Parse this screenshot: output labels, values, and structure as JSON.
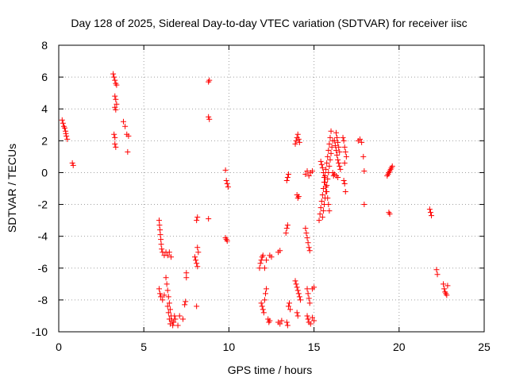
{
  "chart_data": {
    "type": "scatter",
    "title": "Day 128 of 2025, Sidereal Day-to-day VTEC variation (SDTVAR) for receiver iisc",
    "xlabel": "GPS time / hours",
    "ylabel": "SDTVAR / TECUs",
    "xlim": [
      0,
      25
    ],
    "ylim": [
      -10,
      8
    ],
    "xticks": [
      0,
      5,
      10,
      15,
      20,
      25
    ],
    "yticks": [
      -10,
      -8,
      -6,
      -4,
      -2,
      0,
      2,
      4,
      6,
      8
    ],
    "grid": true,
    "legend": "none",
    "marker": "+",
    "marker_color": "#ff0000",
    "series": [
      {
        "name": "SDTVAR",
        "points": [
          [
            0.2,
            3.3
          ],
          [
            0.25,
            3.1
          ],
          [
            0.3,
            2.9
          ],
          [
            0.35,
            2.8
          ],
          [
            0.4,
            2.6
          ],
          [
            0.42,
            2.45
          ],
          [
            0.45,
            2.3
          ],
          [
            0.5,
            2.1
          ],
          [
            0.8,
            0.6
          ],
          [
            0.85,
            0.45
          ],
          [
            3.2,
            6.2
          ],
          [
            3.25,
            6.0
          ],
          [
            3.3,
            5.8
          ],
          [
            3.35,
            5.6
          ],
          [
            3.4,
            5.5
          ],
          [
            3.3,
            4.8
          ],
          [
            3.35,
            4.6
          ],
          [
            3.4,
            4.3
          ],
          [
            3.3,
            4.1
          ],
          [
            3.35,
            3.95
          ],
          [
            3.25,
            2.4
          ],
          [
            3.3,
            2.2
          ],
          [
            3.3,
            1.8
          ],
          [
            3.35,
            1.6
          ],
          [
            3.8,
            3.2
          ],
          [
            3.9,
            2.9
          ],
          [
            4.0,
            2.4
          ],
          [
            4.1,
            2.3
          ],
          [
            4.05,
            1.3
          ],
          [
            8.8,
            5.7
          ],
          [
            8.85,
            5.8
          ],
          [
            8.8,
            3.5
          ],
          [
            8.85,
            3.35
          ],
          [
            8.8,
            -2.9
          ],
          [
            5.9,
            -3.0
          ],
          [
            5.92,
            -3.3
          ],
          [
            5.95,
            -3.6
          ],
          [
            5.97,
            -3.9
          ],
          [
            6.0,
            -4.2
          ],
          [
            6.02,
            -4.5
          ],
          [
            6.05,
            -4.8
          ],
          [
            6.1,
            -5.0
          ],
          [
            6.2,
            -5.2
          ],
          [
            6.3,
            -5.0
          ],
          [
            6.4,
            -5.2
          ],
          [
            6.5,
            -5.0
          ],
          [
            6.6,
            -5.3
          ],
          [
            5.9,
            -7.3
          ],
          [
            5.95,
            -7.6
          ],
          [
            6.0,
            -7.8
          ],
          [
            6.1,
            -8.0
          ],
          [
            6.2,
            -7.7
          ],
          [
            6.3,
            -6.6
          ],
          [
            6.35,
            -7.0
          ],
          [
            6.4,
            -7.4
          ],
          [
            6.45,
            -7.8
          ],
          [
            6.5,
            -8.2
          ],
          [
            6.55,
            -8.6
          ],
          [
            6.6,
            -9.0
          ],
          [
            6.65,
            -9.3
          ],
          [
            6.7,
            -9.6
          ],
          [
            6.75,
            -9.4
          ],
          [
            6.8,
            -9.0
          ],
          [
            6.85,
            -9.2
          ],
          [
            6.4,
            -8.4
          ],
          [
            6.45,
            -8.8
          ],
          [
            6.5,
            -9.2
          ],
          [
            6.55,
            -9.5
          ],
          [
            7.0,
            -9.6
          ],
          [
            7.1,
            -9.0
          ],
          [
            7.3,
            -9.2
          ],
          [
            7.4,
            -8.3
          ],
          [
            7.45,
            -8.1
          ],
          [
            7.5,
            -6.3
          ],
          [
            7.5,
            -6.6
          ],
          [
            8.0,
            -5.3
          ],
          [
            8.05,
            -5.5
          ],
          [
            8.1,
            -5.7
          ],
          [
            8.15,
            -5.9
          ],
          [
            8.2,
            -5.0
          ],
          [
            8.15,
            -4.7
          ],
          [
            8.1,
            -3.0
          ],
          [
            8.15,
            -2.8
          ],
          [
            8.1,
            -8.4
          ],
          [
            9.8,
            0.15
          ],
          [
            9.85,
            -0.5
          ],
          [
            9.9,
            -0.7
          ],
          [
            9.95,
            -0.9
          ],
          [
            9.8,
            -4.1
          ],
          [
            9.85,
            -4.2
          ],
          [
            9.9,
            -4.3
          ],
          [
            11.8,
            -6.0
          ],
          [
            11.85,
            -5.7
          ],
          [
            11.9,
            -5.5
          ],
          [
            11.95,
            -5.3
          ],
          [
            12.0,
            -5.2
          ],
          [
            12.1,
            -6.0
          ],
          [
            12.2,
            -5.5
          ],
          [
            12.4,
            -5.2
          ],
          [
            12.5,
            -5.3
          ],
          [
            11.9,
            -8.2
          ],
          [
            11.95,
            -8.4
          ],
          [
            12.0,
            -8.6
          ],
          [
            12.05,
            -8.8
          ],
          [
            12.1,
            -8.0
          ],
          [
            12.15,
            -7.6
          ],
          [
            12.2,
            -7.3
          ],
          [
            12.3,
            -9.2
          ],
          [
            12.35,
            -9.4
          ],
          [
            12.4,
            -9.3
          ],
          [
            12.9,
            -5.0
          ],
          [
            13.0,
            -4.9
          ],
          [
            12.9,
            -9.4
          ],
          [
            13.0,
            -9.5
          ],
          [
            13.1,
            -9.3
          ],
          [
            13.4,
            -0.5
          ],
          [
            13.45,
            -0.3
          ],
          [
            13.5,
            -0.1
          ],
          [
            13.35,
            -3.8
          ],
          [
            13.4,
            -3.5
          ],
          [
            13.45,
            -3.3
          ],
          [
            13.5,
            -8.4
          ],
          [
            13.55,
            -8.2
          ],
          [
            13.6,
            -8.6
          ],
          [
            13.4,
            -9.4
          ],
          [
            13.45,
            -9.6
          ],
          [
            13.9,
            1.8
          ],
          [
            13.95,
            2.0
          ],
          [
            14.0,
            2.2
          ],
          [
            14.05,
            2.4
          ],
          [
            14.1,
            2.1
          ],
          [
            14.15,
            1.9
          ],
          [
            14.0,
            -1.4
          ],
          [
            14.05,
            -1.6
          ],
          [
            14.1,
            -1.5
          ],
          [
            13.9,
            -6.8
          ],
          [
            13.95,
            -7.0
          ],
          [
            14.0,
            -7.2
          ],
          [
            14.05,
            -7.4
          ],
          [
            14.1,
            -7.6
          ],
          [
            14.15,
            -7.8
          ],
          [
            14.2,
            -8.0
          ],
          [
            14.0,
            -8.8
          ],
          [
            14.05,
            -9.0
          ],
          [
            14.5,
            -0.1
          ],
          [
            14.6,
            0.1
          ],
          [
            14.7,
            -0.2
          ],
          [
            14.8,
            0.0
          ],
          [
            14.9,
            0.1
          ],
          [
            14.5,
            -3.5
          ],
          [
            14.55,
            -3.8
          ],
          [
            14.6,
            -4.1
          ],
          [
            14.65,
            -4.4
          ],
          [
            14.7,
            -4.7
          ],
          [
            14.75,
            -4.9
          ],
          [
            14.6,
            -7.3
          ],
          [
            14.65,
            -7.6
          ],
          [
            14.7,
            -7.9
          ],
          [
            14.75,
            -8.2
          ],
          [
            14.6,
            -9.0
          ],
          [
            14.65,
            -9.2
          ],
          [
            14.7,
            -9.4
          ],
          [
            14.8,
            -9.5
          ],
          [
            14.9,
            -9.1
          ],
          [
            15.0,
            -9.3
          ],
          [
            14.9,
            -7.3
          ],
          [
            15.0,
            -7.2
          ],
          [
            15.3,
            -3.0
          ],
          [
            15.35,
            -2.6
          ],
          [
            15.4,
            -2.2
          ],
          [
            15.45,
            -1.8
          ],
          [
            15.5,
            -1.4
          ],
          [
            15.55,
            -1.0
          ],
          [
            15.6,
            -0.6
          ],
          [
            15.65,
            -0.2
          ],
          [
            15.7,
            0.2
          ],
          [
            15.75,
            0.6
          ],
          [
            15.8,
            1.0
          ],
          [
            15.85,
            1.4
          ],
          [
            15.9,
            1.8
          ],
          [
            15.95,
            2.2
          ],
          [
            16.0,
            2.6
          ],
          [
            15.4,
            0.7
          ],
          [
            15.45,
            0.5
          ],
          [
            15.5,
            0.3
          ],
          [
            15.55,
            0.0
          ],
          [
            15.6,
            -0.3
          ],
          [
            15.65,
            -0.6
          ],
          [
            15.7,
            -0.9
          ],
          [
            15.75,
            -1.2
          ],
          [
            15.8,
            -1.6
          ],
          [
            15.85,
            -2.0
          ],
          [
            15.9,
            -2.4
          ],
          [
            15.5,
            -2.8
          ],
          [
            15.55,
            -2.4
          ],
          [
            15.6,
            -2.0
          ],
          [
            15.65,
            -1.6
          ],
          [
            15.7,
            -1.2
          ],
          [
            15.75,
            -0.8
          ],
          [
            15.8,
            -0.4
          ],
          [
            15.85,
            0.0
          ],
          [
            15.9,
            0.4
          ],
          [
            15.95,
            0.8
          ],
          [
            16.0,
            1.2
          ],
          [
            16.05,
            1.6
          ],
          [
            16.1,
            2.0
          ],
          [
            16.1,
            0.0
          ],
          [
            16.15,
            -0.2
          ],
          [
            16.2,
            -0.1
          ],
          [
            16.3,
            -0.2
          ],
          [
            16.4,
            -0.3
          ],
          [
            16.2,
            2.0
          ],
          [
            16.25,
            1.7
          ],
          [
            16.3,
            1.4
          ],
          [
            16.35,
            1.1
          ],
          [
            16.4,
            0.8
          ],
          [
            16.45,
            0.6
          ],
          [
            16.5,
            0.4
          ],
          [
            16.55,
            0.2
          ],
          [
            16.3,
            2.5
          ],
          [
            16.35,
            2.2
          ],
          [
            16.4,
            1.9
          ],
          [
            16.45,
            1.6
          ],
          [
            16.5,
            1.3
          ],
          [
            16.7,
            2.2
          ],
          [
            16.75,
            2.0
          ],
          [
            16.8,
            1.6
          ],
          [
            16.85,
            1.3
          ],
          [
            16.9,
            1.0
          ],
          [
            16.75,
            -0.5
          ],
          [
            16.8,
            -0.7
          ],
          [
            16.85,
            -1.2
          ],
          [
            16.8,
            0.6
          ],
          [
            17.6,
            2.0
          ],
          [
            17.7,
            2.1
          ],
          [
            17.8,
            1.9
          ],
          [
            17.9,
            1.0
          ],
          [
            17.95,
            0.1
          ],
          [
            17.95,
            -2.0
          ],
          [
            19.3,
            -0.2
          ],
          [
            19.35,
            -0.1
          ],
          [
            19.4,
            0.0
          ],
          [
            19.45,
            0.1
          ],
          [
            19.5,
            0.2
          ],
          [
            19.55,
            0.3
          ],
          [
            19.6,
            0.4
          ],
          [
            19.4,
            -2.5
          ],
          [
            19.45,
            -2.6
          ],
          [
            21.8,
            -2.3
          ],
          [
            21.85,
            -2.5
          ],
          [
            21.9,
            -2.7
          ],
          [
            22.2,
            -6.1
          ],
          [
            22.25,
            -6.4
          ],
          [
            22.6,
            -7.0
          ],
          [
            22.65,
            -7.3
          ],
          [
            22.7,
            -7.5
          ],
          [
            22.75,
            -7.6
          ],
          [
            22.8,
            -7.7
          ],
          [
            22.85,
            -7.1
          ]
        ]
      }
    ]
  }
}
